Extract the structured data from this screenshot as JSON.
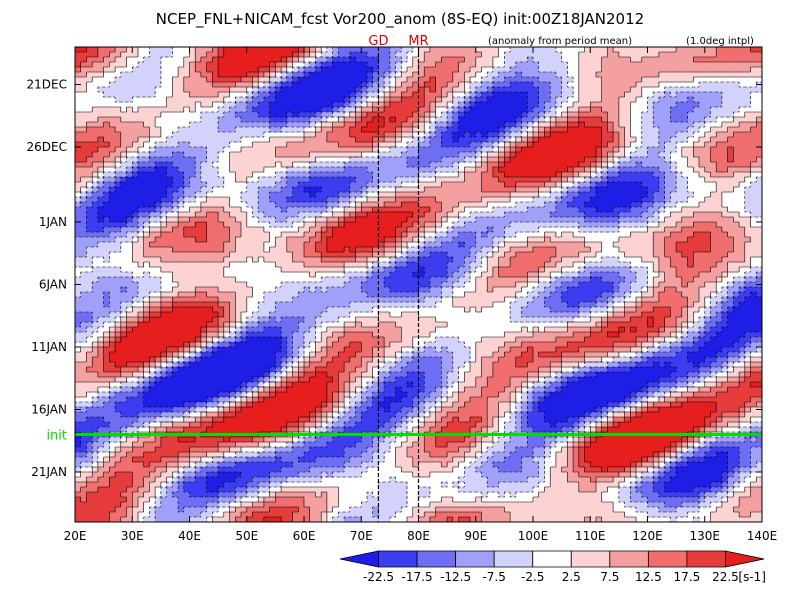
{
  "chart_data": {
    "type": "heatmap",
    "title": "NCEP_FNL+NICAM_fcst Vor200_anom (8S-EQ) init:00Z18JAN2012",
    "subtitle_note": "(anomaly from period mean)",
    "resolution_note": "(1.0deg intpl)",
    "x": {
      "ticks": [
        "20E",
        "30E",
        "40E",
        "50E",
        "60E",
        "70E",
        "80E",
        "90E",
        "100E",
        "110E",
        "120E",
        "130E",
        "140E"
      ],
      "range": [
        20,
        140
      ],
      "unit": "longitude"
    },
    "y": {
      "ticks": [
        "21DEC",
        "26DEC",
        "1JAN",
        "6JAN",
        "11JAN",
        "16JAN",
        "21JAN"
      ],
      "tick_day_offsets": [
        0,
        5,
        11,
        16,
        21,
        26,
        31
      ],
      "range": [
        "2011-12-18",
        "2012-01-25"
      ],
      "direction": "time increasing downward"
    },
    "markers": [
      {
        "label": "GD",
        "lon": 73,
        "color": "#e00000"
      },
      {
        "label": "MR",
        "lon": 80,
        "color": "#e00000"
      }
    ],
    "init_line": {
      "label": "init",
      "date": "2012-01-18",
      "color": "#00e000"
    },
    "colorbar": {
      "labels": [
        "-22.5",
        "-17.5",
        "-12.5",
        "-7.5",
        "-2.5",
        "2.5",
        "7.5",
        "12.5",
        "17.5",
        "22.5"
      ],
      "unit": "[s-1]",
      "colors": [
        "#1e1ee6",
        "#3c3cf0",
        "#6e6ef5",
        "#a0a0fa",
        "#d2d2fc",
        "#ffffff",
        "#fcd2d2",
        "#f5a0a0",
        "#f06e6e",
        "#e63c3c",
        "#e61e1e"
      ]
    }
  }
}
